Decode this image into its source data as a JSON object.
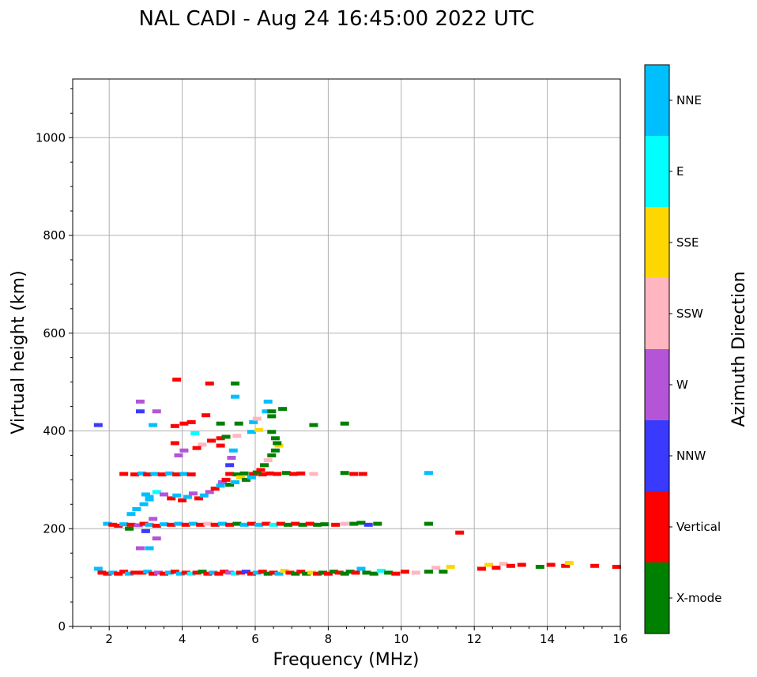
{
  "chart_data": {
    "type": "scatter",
    "title": "NAL CADI - Aug 24 16:45:00 2022 UTC",
    "xlabel": "Frequency (MHz)",
    "ylabel": "Virtual height (km)",
    "xlim": [
      1,
      16
    ],
    "ylim": [
      0,
      1120
    ],
    "xticks": [
      2,
      4,
      6,
      8,
      10,
      12,
      14,
      16
    ],
    "yticks": [
      0,
      200,
      400,
      600,
      800,
      1000
    ],
    "grid": true,
    "colorbar": {
      "label": "Azimuth Direction",
      "categories": [
        "X-mode",
        "Vertical",
        "NNW",
        "W",
        "SSW",
        "SSE",
        "E",
        "NNE"
      ],
      "colors": [
        "#008000",
        "#ff0000",
        "#3a3aff",
        "#b455d8",
        "#ffb6c1",
        "#ffd700",
        "#00ffff",
        "#00bfff"
      ]
    },
    "points": [
      [
        1.7,
        118,
        "NNE"
      ],
      [
        1.8,
        110,
        "Vertical"
      ],
      [
        1.95,
        108,
        "Vertical"
      ],
      [
        2.1,
        110,
        "NNE"
      ],
      [
        2.25,
        108,
        "Vertical"
      ],
      [
        2.4,
        112,
        "Vertical"
      ],
      [
        2.55,
        108,
        "NNE"
      ],
      [
        2.7,
        110,
        "Vertical"
      ],
      [
        2.9,
        110,
        "Vertical"
      ],
      [
        3.05,
        112,
        "NNE"
      ],
      [
        3.2,
        108,
        "Vertical"
      ],
      [
        3.35,
        110,
        "W"
      ],
      [
        3.5,
        108,
        "Vertical"
      ],
      [
        3.65,
        110,
        "NNE"
      ],
      [
        3.8,
        112,
        "Vertical"
      ],
      [
        3.95,
        108,
        "NNE"
      ],
      [
        4.1,
        110,
        "Vertical"
      ],
      [
        4.25,
        108,
        "E"
      ],
      [
        4.4,
        110,
        "Vertical"
      ],
      [
        4.55,
        112,
        "X-mode"
      ],
      [
        4.7,
        108,
        "Vertical"
      ],
      [
        4.85,
        110,
        "NNE"
      ],
      [
        5.0,
        108,
        "Vertical"
      ],
      [
        5.15,
        112,
        "Vertical"
      ],
      [
        5.3,
        110,
        "W"
      ],
      [
        5.45,
        108,
        "E"
      ],
      [
        5.6,
        110,
        "Vertical"
      ],
      [
        5.75,
        112,
        "NNW"
      ],
      [
        5.9,
        108,
        "Vertical"
      ],
      [
        6.05,
        110,
        "NNE"
      ],
      [
        6.2,
        112,
        "Vertical"
      ],
      [
        6.35,
        108,
        "X-mode"
      ],
      [
        6.5,
        110,
        "Vertical"
      ],
      [
        6.65,
        108,
        "NNE"
      ],
      [
        6.8,
        114,
        "SSE"
      ],
      [
        6.95,
        110,
        "Vertical"
      ],
      [
        7.1,
        108,
        "X-mode"
      ],
      [
        7.25,
        112,
        "Vertical"
      ],
      [
        7.4,
        108,
        "X-mode"
      ],
      [
        7.55,
        110,
        "SSE"
      ],
      [
        7.7,
        108,
        "Vertical"
      ],
      [
        7.85,
        110,
        "X-mode"
      ],
      [
        8.0,
        108,
        "Vertical"
      ],
      [
        8.15,
        112,
        "X-mode"
      ],
      [
        8.3,
        110,
        "Vertical"
      ],
      [
        8.45,
        108,
        "X-mode"
      ],
      [
        8.6,
        112,
        "X-mode"
      ],
      [
        8.75,
        110,
        "Vertical"
      ],
      [
        8.9,
        118,
        "NNE"
      ],
      [
        9.05,
        110,
        "X-mode"
      ],
      [
        9.25,
        108,
        "X-mode"
      ],
      [
        9.45,
        114,
        "E"
      ],
      [
        9.65,
        110,
        "X-mode"
      ],
      [
        9.85,
        108,
        "Vertical"
      ],
      [
        10.1,
        112,
        "Vertical"
      ],
      [
        10.4,
        110,
        "SSW"
      ],
      [
        10.75,
        112,
        "X-mode"
      ],
      [
        10.95,
        120,
        "SSW"
      ],
      [
        11.15,
        112,
        "X-mode"
      ],
      [
        11.35,
        122,
        "SSE"
      ],
      [
        12.2,
        118,
        "Vertical"
      ],
      [
        12.4,
        126,
        "SSE"
      ],
      [
        12.6,
        120,
        "Vertical"
      ],
      [
        12.8,
        128,
        "SSW"
      ],
      [
        13.0,
        124,
        "Vertical"
      ],
      [
        13.3,
        126,
        "Vertical"
      ],
      [
        13.8,
        122,
        "X-mode"
      ],
      [
        14.1,
        126,
        "Vertical"
      ],
      [
        14.5,
        124,
        "Vertical"
      ],
      [
        14.6,
        130,
        "SSE"
      ],
      [
        15.3,
        124,
        "Vertical"
      ],
      [
        15.9,
        122,
        "Vertical"
      ],
      [
        1.95,
        210,
        "NNE"
      ],
      [
        2.1,
        208,
        "Vertical"
      ],
      [
        2.25,
        206,
        "Vertical"
      ],
      [
        2.4,
        209,
        "NNE"
      ],
      [
        2.6,
        208,
        "Vertical"
      ],
      [
        2.8,
        207,
        "W"
      ],
      [
        2.95,
        210,
        "Vertical"
      ],
      [
        3.1,
        208,
        "NNE"
      ],
      [
        3.3,
        206,
        "Vertical"
      ],
      [
        3.5,
        209,
        "NNE"
      ],
      [
        3.7,
        208,
        "Vertical"
      ],
      [
        3.9,
        210,
        "NNE"
      ],
      [
        4.1,
        208,
        "Vertical"
      ],
      [
        4.3,
        210,
        "NNE"
      ],
      [
        4.5,
        208,
        "Vertical"
      ],
      [
        4.7,
        210,
        "SSW"
      ],
      [
        4.9,
        208,
        "Vertical"
      ],
      [
        5.1,
        210,
        "NNE"
      ],
      [
        5.3,
        208,
        "Vertical"
      ],
      [
        5.5,
        210,
        "X-mode"
      ],
      [
        5.7,
        208,
        "NNE"
      ],
      [
        5.9,
        210,
        "Vertical"
      ],
      [
        6.1,
        208,
        "NNE"
      ],
      [
        6.3,
        210,
        "Vertical"
      ],
      [
        6.5,
        208,
        "E"
      ],
      [
        6.7,
        210,
        "Vertical"
      ],
      [
        6.9,
        208,
        "X-mode"
      ],
      [
        7.1,
        210,
        "Vertical"
      ],
      [
        7.3,
        208,
        "X-mode"
      ],
      [
        7.5,
        210,
        "Vertical"
      ],
      [
        7.7,
        208,
        "X-mode"
      ],
      [
        7.9,
        209,
        "X-mode"
      ],
      [
        8.2,
        208,
        "Vertical"
      ],
      [
        8.45,
        210,
        "SSW"
      ],
      [
        8.7,
        210,
        "X-mode"
      ],
      [
        8.9,
        212,
        "X-mode"
      ],
      [
        9.1,
        208,
        "NNW"
      ],
      [
        9.35,
        210,
        "X-mode"
      ],
      [
        10.75,
        210,
        "X-mode"
      ],
      [
        11.6,
        192,
        "Vertical"
      ],
      [
        2.4,
        312,
        "Vertical"
      ],
      [
        2.7,
        311,
        "Vertical"
      ],
      [
        2.9,
        313,
        "NNE"
      ],
      [
        3.05,
        311,
        "Vertical"
      ],
      [
        3.25,
        312,
        "NNE"
      ],
      [
        3.45,
        311,
        "Vertical"
      ],
      [
        3.65,
        313,
        "NNE"
      ],
      [
        3.85,
        311,
        "Vertical"
      ],
      [
        4.05,
        312,
        "NNE"
      ],
      [
        4.25,
        311,
        "Vertical"
      ],
      [
        5.3,
        312,
        "Vertical"
      ],
      [
        5.5,
        311,
        "X-mode"
      ],
      [
        5.7,
        313,
        "X-mode"
      ],
      [
        5.95,
        312,
        "Vertical"
      ],
      [
        6.2,
        311,
        "Vertical"
      ],
      [
        6.4,
        313,
        "Vertical"
      ],
      [
        6.6,
        312,
        "Vertical"
      ],
      [
        6.85,
        314,
        "X-mode"
      ],
      [
        7.05,
        312,
        "Vertical"
      ],
      [
        7.25,
        313,
        "Vertical"
      ],
      [
        7.6,
        312,
        "SSW"
      ],
      [
        8.45,
        314,
        "X-mode"
      ],
      [
        8.7,
        312,
        "Vertical"
      ],
      [
        8.95,
        312,
        "Vertical"
      ],
      [
        10.75,
        314,
        "NNE"
      ],
      [
        3.0,
        270,
        "NNE"
      ],
      [
        3.1,
        265,
        "NNE"
      ],
      [
        3.3,
        275,
        "E"
      ],
      [
        3.5,
        270,
        "W"
      ],
      [
        3.7,
        262,
        "Vertical"
      ],
      [
        3.85,
        268,
        "NNE"
      ],
      [
        4.0,
        258,
        "Vertical"
      ],
      [
        4.15,
        265,
        "NNE"
      ],
      [
        4.3,
        272,
        "W"
      ],
      [
        4.45,
        262,
        "Vertical"
      ],
      [
        4.6,
        268,
        "NNE"
      ],
      [
        4.75,
        275,
        "W"
      ],
      [
        4.9,
        282,
        "Vertical"
      ],
      [
        5.05,
        288,
        "NNE"
      ],
      [
        5.1,
        295,
        "W"
      ],
      [
        5.2,
        300,
        "Vertical"
      ],
      [
        5.3,
        290,
        "X-mode"
      ],
      [
        5.45,
        295,
        "NNE"
      ],
      [
        5.6,
        305,
        "SSE"
      ],
      [
        5.75,
        300,
        "X-mode"
      ],
      [
        5.9,
        305,
        "NNE"
      ],
      [
        6.05,
        315,
        "X-mode"
      ],
      [
        6.15,
        320,
        "Vertical"
      ],
      [
        6.25,
        330,
        "X-mode"
      ],
      [
        6.35,
        340,
        "SSW"
      ],
      [
        6.45,
        350,
        "X-mode"
      ],
      [
        6.55,
        360,
        "X-mode"
      ],
      [
        6.65,
        370,
        "SSE"
      ],
      [
        6.55,
        385,
        "X-mode"
      ],
      [
        2.6,
        230,
        "NNE"
      ],
      [
        2.75,
        240,
        "NNE"
      ],
      [
        2.95,
        250,
        "NNE"
      ],
      [
        3.1,
        260,
        "NNE"
      ],
      [
        3.2,
        220,
        "W"
      ],
      [
        3.0,
        195,
        "NNW"
      ],
      [
        2.55,
        200,
        "X-mode"
      ],
      [
        3.1,
        160,
        "NNE"
      ],
      [
        2.85,
        160,
        "W"
      ],
      [
        3.3,
        180,
        "W"
      ],
      [
        5.3,
        330,
        "NNW"
      ],
      [
        5.35,
        345,
        "W"
      ],
      [
        5.4,
        360,
        "NNE"
      ],
      [
        5.05,
        370,
        "Vertical"
      ],
      [
        4.8,
        380,
        "Vertical"
      ],
      [
        4.55,
        372,
        "SSW"
      ],
      [
        4.4,
        365,
        "Vertical"
      ],
      [
        4.05,
        360,
        "W"
      ],
      [
        3.8,
        375,
        "Vertical"
      ],
      [
        3.9,
        350,
        "W"
      ],
      [
        4.35,
        395,
        "E"
      ],
      [
        5.05,
        385,
        "Vertical"
      ],
      [
        5.2,
        388,
        "X-mode"
      ],
      [
        5.5,
        390,
        "SSW"
      ],
      [
        5.9,
        398,
        "NNE"
      ],
      [
        6.1,
        402,
        "SSE"
      ],
      [
        6.45,
        398,
        "X-mode"
      ],
      [
        6.6,
        375,
        "X-mode"
      ],
      [
        4.05,
        415,
        "Vertical"
      ],
      [
        4.25,
        418,
        "Vertical"
      ],
      [
        5.05,
        415,
        "X-mode"
      ],
      [
        5.55,
        415,
        "X-mode"
      ],
      [
        5.95,
        418,
        "NNE"
      ],
      [
        6.05,
        425,
        "SSW"
      ],
      [
        6.45,
        430,
        "X-mode"
      ],
      [
        6.3,
        440,
        "NNE"
      ],
      [
        6.45,
        440,
        "X-mode"
      ],
      [
        6.75,
        445,
        "X-mode"
      ],
      [
        7.6,
        412,
        "X-mode"
      ],
      [
        8.45,
        415,
        "X-mode"
      ],
      [
        2.85,
        440,
        "NNW"
      ],
      [
        3.3,
        440,
        "W"
      ],
      [
        4.65,
        432,
        "Vertical"
      ],
      [
        5.45,
        470,
        "NNE"
      ],
      [
        6.35,
        460,
        "NNE"
      ],
      [
        2.85,
        460,
        "W"
      ],
      [
        3.2,
        412,
        "NNE"
      ],
      [
        3.8,
        410,
        "Vertical"
      ],
      [
        1.7,
        412,
        "NNW"
      ],
      [
        3.85,
        505,
        "Vertical"
      ],
      [
        4.75,
        497,
        "Vertical"
      ],
      [
        5.45,
        497,
        "X-mode"
      ]
    ]
  }
}
